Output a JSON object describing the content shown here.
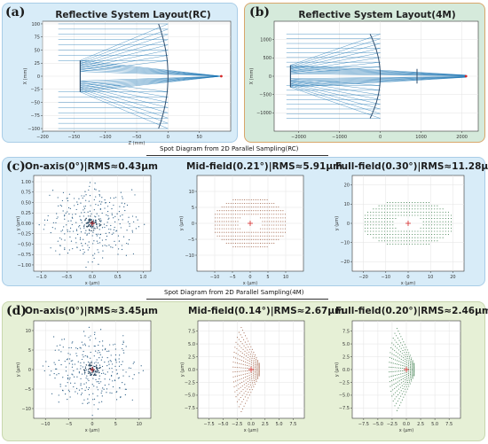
{
  "colors": {
    "panel_blue": "#d8ecf8",
    "panel_green": "#d5eadb",
    "panel_yellow": "#e6f0d6",
    "border_blue": "#a9cde7",
    "border_green": "#d9a66a",
    "ray": "#1f77b4",
    "mirror": "#2f4f6f",
    "focus": "#d62728",
    "spot_blue": "#2c5f86",
    "spot_brown": "#a0644a",
    "spot_green": "#3f7f4f",
    "centroid": "#d62728"
  },
  "tags": {
    "a": "(a)",
    "b": "(b)",
    "c": "(c)",
    "d": "(d)"
  },
  "sections": {
    "rc": "Spot Diagram from 2D Parallel Sampling(RC)",
    "fourm": "Spot Diagram from 2D Parallel Sampling(4M)"
  },
  "chart_data": [
    {
      "id": "layout_rc",
      "type": "line",
      "title": "Reflective System Layout(RC)",
      "xlabel": "Z (mm)",
      "ylabel": "X (mm)",
      "xlim": [
        -200,
        100
      ],
      "ylim": [
        -105,
        105
      ],
      "xticks": [
        -200,
        -150,
        -100,
        -50,
        0,
        50
      ],
      "yticks": [
        -100,
        -75,
        -50,
        -25,
        0,
        25,
        50,
        75,
        100
      ],
      "ray_count": 21,
      "ray_start_z": -175,
      "primary_z": 0,
      "secondary_z": -140,
      "aperture": 100,
      "secondary_halfwidth": 30,
      "hole_halfwidth": 17,
      "focus_z": 85
    },
    {
      "id": "layout_4m",
      "type": "line",
      "title": "Reflective System Layout(4M)",
      "xlabel": "",
      "ylabel": "X (mm)",
      "xlim": [
        -2600,
        2400
      ],
      "ylim": [
        -1500,
        1500
      ],
      "xticks": [
        -2000,
        -1000,
        0,
        1000,
        2000
      ],
      "yticks": [
        -1000,
        -500,
        0,
        500,
        1000
      ],
      "ray_count": 19,
      "ray_start_z": -2300,
      "primary_z": 0,
      "secondary_z": -2200,
      "aperture": 1150,
      "secondary_halfwidth": 300,
      "hole_halfwidth": 130,
      "relay_z": 900,
      "relay_halfwidth": 200,
      "focus_z": 2100
    },
    {
      "id": "spot_rc_on",
      "type": "scatter",
      "title": "On-axis(0°)|RMS≈0.43μm",
      "shape": "ring",
      "xlabel": "x (μm)",
      "ylabel": "y (μm)",
      "xlim": [
        -1.15,
        1.15
      ],
      "ylim": [
        -1.15,
        1.15
      ],
      "xticks": [
        -1.0,
        -0.5,
        0.0,
        0.5,
        1.0
      ],
      "yticks": [
        -1.0,
        -0.75,
        -0.5,
        -0.25,
        0.0,
        0.25,
        0.5,
        0.75,
        1.0
      ],
      "rx": 1.0,
      "ry": 1.0,
      "color": "spot_blue"
    },
    {
      "id": "spot_rc_mid",
      "type": "scatter",
      "title": "Mid-field(0.21°)|RMS≈5.91μm",
      "shape": "ellipse",
      "xlabel": "x (μm)",
      "ylabel": "y (μm)",
      "xlim": [
        -15,
        15
      ],
      "ylim": [
        -15,
        15
      ],
      "xticks": [
        -10,
        -5,
        0,
        5,
        10
      ],
      "yticks": [
        -10,
        -5,
        0,
        5,
        10
      ],
      "rx": 10.5,
      "ry": 8.5,
      "color": "spot_brown"
    },
    {
      "id": "spot_rc_full",
      "type": "scatter",
      "title": "Full-field(0.30°)|RMS≈11.28μm",
      "shape": "ellipse",
      "xlabel": "x (μm)",
      "ylabel": "y (μm)",
      "xlim": [
        -25,
        25
      ],
      "ylim": [
        -25,
        25
      ],
      "xticks": [
        -20,
        -10,
        0,
        10,
        20
      ],
      "yticks": [
        -20,
        -10,
        0,
        10,
        20
      ],
      "rx": 20.5,
      "ry": 12.5,
      "color": "spot_green"
    },
    {
      "id": "spot_4m_on",
      "type": "scatter",
      "title": "On-axis(0°)|RMS≈3.45μm",
      "shape": "ring",
      "xlabel": "x (μm)",
      "ylabel": "y (μm)",
      "xlim": [
        -12.5,
        12.5
      ],
      "ylim": [
        -12.5,
        12.5
      ],
      "xticks": [
        -10,
        -5,
        0,
        5,
        10
      ],
      "yticks": [
        -10,
        -5,
        0,
        5,
        10
      ],
      "rx": 10.5,
      "ry": 10.5,
      "color": "spot_blue"
    },
    {
      "id": "spot_4m_mid",
      "type": "scatter",
      "title": "Mid-field(0.14°)|RMS≈2.67μm",
      "shape": "fan",
      "xlabel": "x (μm)",
      "ylabel": "y (μm)",
      "xlim": [
        -9.5,
        9.5
      ],
      "ylim": [
        -9.5,
        9.5
      ],
      "xticks": [
        -7.5,
        -5.0,
        -2.5,
        0.0,
        2.5,
        5.0,
        7.5
      ],
      "yticks": [
        -7.5,
        -5.0,
        -2.5,
        0.0,
        2.5,
        5.0,
        7.5
      ],
      "rx": 3.2,
      "ry": 8.2,
      "color": "spot_brown"
    },
    {
      "id": "spot_4m_full",
      "type": "scatter",
      "title": "Full-field(0.20°)|RMS≈2.46μm",
      "shape": "fan",
      "xlabel": "x (μm)",
      "ylabel": "y (μm)",
      "xlim": [
        -9.5,
        9.5
      ],
      "ylim": [
        -9.5,
        9.5
      ],
      "xticks": [
        -7.5,
        -5.0,
        -2.5,
        0.0,
        2.5,
        5.0,
        7.5
      ],
      "yticks": [
        -7.5,
        -5.0,
        -2.5,
        0.0,
        2.5,
        5.0,
        7.5
      ],
      "rx": 3.0,
      "ry": 8.0,
      "color": "spot_green"
    }
  ]
}
